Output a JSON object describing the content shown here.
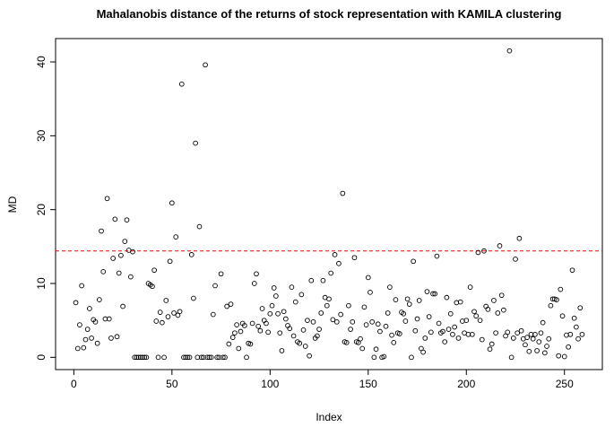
{
  "chart_data": {
    "type": "scatter",
    "title": "Mahalanobis distance of the returns of stock representation with KAMILA clustering",
    "xlabel": "Index",
    "ylabel": "MD",
    "x": [
      1,
      2,
      3,
      4,
      5,
      6,
      7,
      8,
      9,
      10,
      11,
      12,
      13,
      14,
      15,
      16,
      17,
      18,
      19,
      20,
      21,
      22,
      23,
      24,
      25,
      26,
      27,
      28,
      29,
      30,
      31,
      32,
      33,
      34,
      35,
      36,
      37,
      38,
      39,
      40,
      41,
      42,
      43,
      44,
      45,
      46,
      47,
      48,
      49,
      50,
      51,
      52,
      53,
      54,
      55,
      56,
      57,
      58,
      59,
      60,
      61,
      62,
      63,
      64,
      65,
      66,
      67,
      68,
      69,
      70,
      71,
      72,
      73,
      74,
      75,
      76,
      77,
      78,
      79,
      80,
      81,
      82,
      83,
      84,
      85,
      86,
      87,
      88,
      89,
      90,
      91,
      92,
      93,
      94,
      95,
      96,
      97,
      98,
      99,
      100,
      101,
      102,
      103,
      104,
      105,
      106,
      107,
      108,
      109,
      110,
      111,
      112,
      113,
      114,
      115,
      116,
      117,
      118,
      119,
      120,
      121,
      122,
      123,
      124,
      125,
      126,
      127,
      128,
      129,
      130,
      131,
      132,
      133,
      134,
      135,
      136,
      137,
      138,
      139,
      140,
      141,
      142,
      143,
      144,
      145,
      146,
      147,
      148,
      149,
      150,
      151,
      152,
      153,
      154,
      155,
      156,
      157,
      158,
      159,
      160,
      161,
      162,
      163,
      164,
      165,
      166,
      167,
      168,
      169,
      170,
      171,
      172,
      173,
      174,
      175,
      176,
      177,
      178,
      179,
      180,
      181,
      182,
      183,
      184,
      185,
      186,
      187,
      188,
      189,
      190,
      191,
      192,
      193,
      194,
      195,
      196,
      197,
      198,
      199,
      200,
      201,
      202,
      203,
      204,
      205,
      206,
      207,
      208,
      209,
      210,
      211,
      212,
      213,
      214,
      215,
      216,
      217,
      218,
      219,
      220,
      221,
      222,
      223,
      224,
      225,
      226,
      227,
      228,
      229,
      230,
      231,
      232,
      233,
      234,
      235,
      236,
      237,
      238,
      239,
      240,
      241,
      242,
      243,
      244,
      245,
      246,
      247,
      248,
      249,
      250,
      251,
      252,
      253,
      254,
      255,
      256,
      257,
      258,
      259
    ],
    "values": [
      7.4,
      1.2,
      4.4,
      9.7,
      1.3,
      2.4,
      3.8,
      6.6,
      2.6,
      5.1,
      4.8,
      1.9,
      7.8,
      17.1,
      11.6,
      5.2,
      21.5,
      5.2,
      2.6,
      13.4,
      18.7,
      2.8,
      11.4,
      13.8,
      6.9,
      15.7,
      18.6,
      14.5,
      10.9,
      14.3,
      0,
      0,
      0,
      0,
      0,
      0,
      0,
      10,
      9.8,
      9.6,
      11.8,
      4.9,
      0,
      6.1,
      4.7,
      0,
      7.7,
      5.5,
      13,
      20.9,
      6,
      16.3,
      5.7,
      6.2,
      37,
      0,
      0,
      0,
      0,
      13.9,
      8,
      29,
      0,
      17.7,
      0,
      0,
      39.6,
      0,
      0,
      0,
      5.8,
      9.7,
      0,
      0,
      11.3,
      0,
      0,
      6.9,
      1.8,
      7.2,
      2.7,
      3.3,
      4.4,
      1.2,
      3.5,
      4.6,
      4.3,
      0,
      1.9,
      1.8,
      4.6,
      10,
      11.3,
      4.2,
      3.6,
      6.6,
      5,
      4.6,
      3.4,
      5.9,
      7,
      9.4,
      8.3,
      5.9,
      3.3,
      0.9,
      6.2,
      5.2,
      4.3,
      3.9,
      9.5,
      2.9,
      7.5,
      2.1,
      1.9,
      8.5,
      3.7,
      1.5,
      5,
      0.2,
      10.4,
      4.8,
      2.6,
      2.9,
      3.8,
      6,
      10.4,
      8.1,
      7,
      7.9,
      11.4,
      5.1,
      13.9,
      4.8,
      12.7,
      5.8,
      22.2,
      2.1,
      2,
      7,
      3.8,
      4.8,
      13.5,
      2.1,
      2,
      2.5,
      1.2,
      6.8,
      4.4,
      10.8,
      8.8,
      4.8,
      0,
      1.1,
      4.5,
      3.5,
      0,
      0.1,
      4.2,
      6,
      9.5,
      3,
      2,
      7.8,
      3.3,
      3.2,
      6.1,
      5.9,
      4.9,
      7.9,
      7.2,
      0,
      13,
      3.6,
      5.2,
      7.7,
      1.2,
      0.7,
      2.6,
      8.9,
      5.5,
      3.4,
      8.6,
      8.6,
      13.7,
      4.6,
      3.3,
      3.5,
      2.1,
      8.1,
      3.8,
      5.9,
      3.1,
      4.1,
      7.4,
      2.6,
      7.5,
      4.9,
      3.3,
      5,
      3.1,
      9.5,
      3.1,
      6.2,
      5.6,
      14.2,
      5,
      2.4,
      14.4,
      6.9,
      6.5,
      1.1,
      1.8,
      7.7,
      3.3,
      6,
      15.1,
      8.4,
      6.4,
      2.9,
      3.4,
      41.5,
      0,
      2.6,
      13.3,
      3.3,
      16.1,
      3.6,
      2.5,
      1.7,
      2.7,
      0.8,
      3.1,
      2.5,
      3.1,
      0.9,
      2.1,
      3.3,
      4.7,
      0.6,
      1.5,
      2.5,
      7,
      7.9,
      7.9,
      7.8,
      0.2,
      9.2,
      5.6,
      0.1,
      3,
      1.4,
      3.1,
      11.8,
      5.3,
      4.1,
      2.5,
      6.7,
      3.1
    ],
    "color": "#000000",
    "xlim": [
      -9.3,
      269.3
    ],
    "ylim": [
      -1.66,
      43.16
    ],
    "xticks": [
      0,
      50,
      100,
      150,
      200,
      250
    ],
    "yticks": [
      0,
      10,
      20,
      30,
      40
    ],
    "hline": 14.4,
    "hline_color": "#ff0000"
  }
}
